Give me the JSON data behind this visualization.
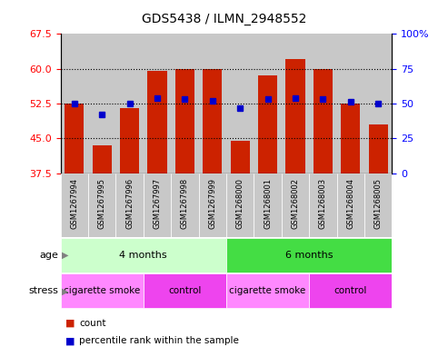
{
  "title": "GDS5438 / ILMN_2948552",
  "samples": [
    "GSM1267994",
    "GSM1267995",
    "GSM1267996",
    "GSM1267997",
    "GSM1267998",
    "GSM1267999",
    "GSM1268000",
    "GSM1268001",
    "GSM1268002",
    "GSM1268003",
    "GSM1268004",
    "GSM1268005"
  ],
  "counts": [
    52.5,
    43.5,
    51.5,
    59.5,
    60.0,
    60.0,
    44.5,
    58.5,
    62.0,
    60.0,
    52.5,
    48.0
  ],
  "percentile_ranks": [
    50,
    42,
    50,
    54,
    53,
    52,
    47,
    53,
    54,
    53,
    51,
    50
  ],
  "ylim_left": [
    37.5,
    67.5
  ],
  "ylim_right": [
    0,
    100
  ],
  "yticks_left": [
    37.5,
    45.0,
    52.5,
    60.0,
    67.5
  ],
  "yticks_right": [
    0,
    25,
    50,
    75,
    100
  ],
  "bar_color": "#cc2200",
  "marker_color": "#0000cc",
  "bar_bottom": 37.5,
  "col_bg_color": "#c8c8c8",
  "groups_age": [
    {
      "label": "4 months",
      "start": 0,
      "end": 6,
      "color": "#ccffcc"
    },
    {
      "label": "6 months",
      "start": 6,
      "end": 12,
      "color": "#44dd44"
    }
  ],
  "groups_stress": [
    {
      "label": "cigarette smoke",
      "start": 0,
      "end": 3,
      "color": "#ff88ff"
    },
    {
      "label": "control",
      "start": 3,
      "end": 6,
      "color": "#ee44ee"
    },
    {
      "label": "cigarette smoke",
      "start": 6,
      "end": 9,
      "color": "#ff88ff"
    },
    {
      "label": "control",
      "start": 9,
      "end": 12,
      "color": "#ee44ee"
    }
  ],
  "legend": [
    {
      "label": "count",
      "color": "#cc2200"
    },
    {
      "label": "percentile rank within the sample",
      "color": "#0000cc"
    }
  ]
}
